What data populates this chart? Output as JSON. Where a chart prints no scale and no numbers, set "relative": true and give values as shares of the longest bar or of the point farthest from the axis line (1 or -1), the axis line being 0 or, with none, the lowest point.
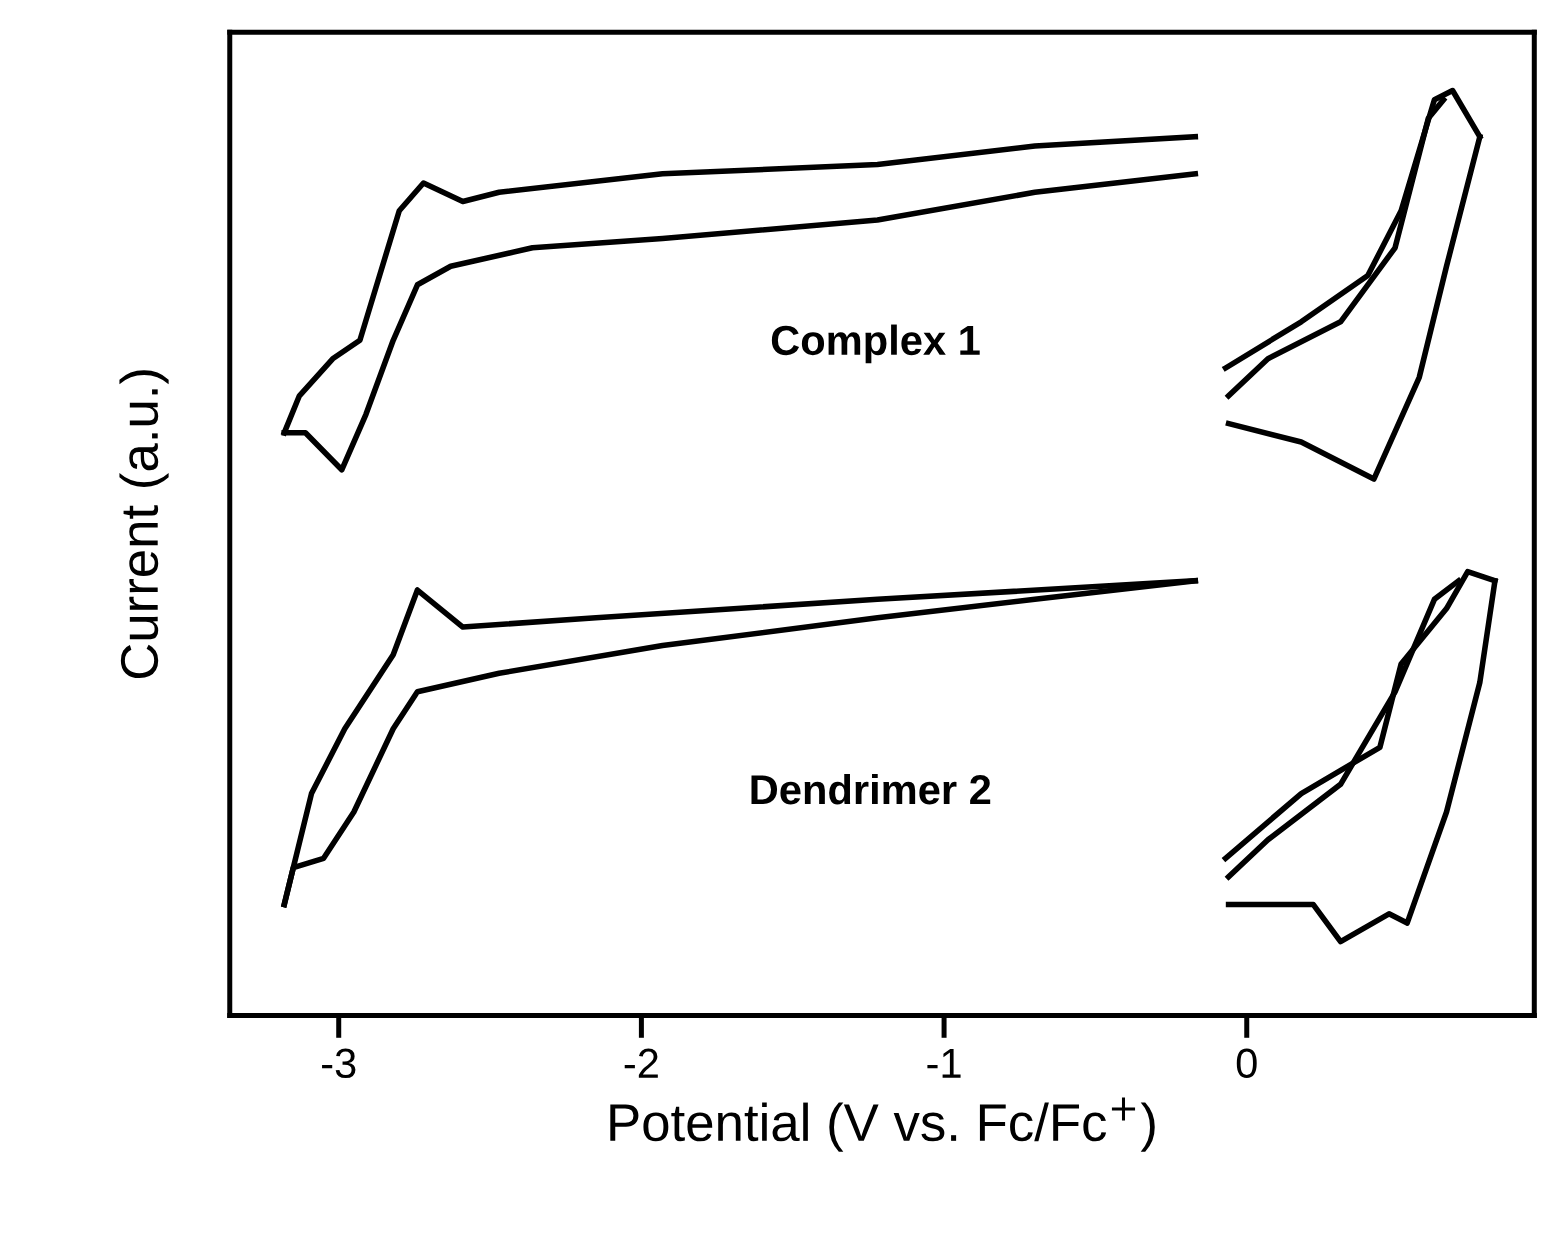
{
  "chart_data": {
    "type": "line",
    "relative": true,
    "xlabel": "Potential (V vs. Fc/Fc$^{+}$)",
    "ylabel": "Current (a.u.)",
    "xlim": [
      -3.36,
      0.95
    ],
    "xticks": [
      -3,
      -2,
      -1,
      0
    ],
    "grid": false,
    "marker": "none",
    "line_style": "solid",
    "annotations": [
      "Complex 1",
      "Dendrimer 2"
    ],
    "series": [
      {
        "color": "#000000",
        "x": [
          -0.17,
          -0.7,
          -1.22,
          -1.93,
          -2.47,
          -2.59,
          -2.72,
          -2.8,
          -2.93,
          -3.02,
          -3.13,
          -3.18
        ],
        "values": [
          0.95,
          0.94,
          0.92,
          0.91,
          0.89,
          0.88,
          0.9,
          0.87,
          0.73,
          0.71,
          0.67,
          0.63
        ]
      },
      {
        "color": "#000000",
        "x": [
          -3.18,
          -3.11,
          -2.99,
          -2.91,
          -2.82,
          -2.74,
          -2.63,
          -2.36,
          -1.93,
          -1.22,
          -0.7,
          -0.17
        ],
        "values": [
          0.63,
          0.63,
          0.59,
          0.65,
          0.73,
          0.79,
          0.81,
          0.83,
          0.84,
          0.86,
          0.89,
          0.91
        ]
      },
      {
        "color": "#000000",
        "x": [
          -0.07,
          0.18,
          0.4,
          0.51,
          0.62,
          0.68,
          0.77
        ],
        "values": [
          0.7,
          0.75,
          0.8,
          0.87,
          0.99,
          1.0,
          0.95
        ]
      },
      {
        "color": "#000000",
        "x": [
          0.77,
          0.66,
          0.57,
          0.42,
          0.18,
          -0.06
        ],
        "values": [
          0.95,
          0.81,
          0.69,
          0.58,
          0.62,
          0.64
        ]
      },
      {
        "color": "#000000",
        "x": [
          -0.06,
          0.07,
          0.31,
          0.49,
          0.6,
          0.65
        ],
        "values": [
          0.67,
          0.71,
          0.75,
          0.83,
          0.97,
          0.99
        ]
      },
      {
        "color": "#000000",
        "x": [
          -0.17,
          -1.22,
          -2.15,
          -2.59,
          -2.74,
          -2.82,
          -2.98,
          -3.09,
          -3.18
        ],
        "values": [
          0.47,
          0.45,
          0.43,
          0.42,
          0.46,
          0.39,
          0.31,
          0.24,
          0.12
        ]
      },
      {
        "color": "#000000",
        "x": [
          -3.18,
          -3.15,
          -3.05,
          -2.95,
          -2.82,
          -2.74,
          -2.47,
          -1.93,
          -1.22,
          -0.7,
          -0.17
        ],
        "values": [
          0.12,
          0.16,
          0.17,
          0.22,
          0.31,
          0.35,
          0.37,
          0.4,
          0.43,
          0.45,
          0.47
        ]
      },
      {
        "color": "#000000",
        "x": [
          -0.07,
          0.18,
          0.44,
          0.51,
          0.66,
          0.73,
          0.82
        ],
        "values": [
          0.17,
          0.24,
          0.29,
          0.38,
          0.44,
          0.48,
          0.47
        ]
      },
      {
        "color": "#000000",
        "x": [
          0.82,
          0.77,
          0.66,
          0.53,
          0.47,
          0.31,
          0.22,
          -0.06
        ],
        "values": [
          0.47,
          0.36,
          0.22,
          0.1,
          0.11,
          0.08,
          0.12,
          0.12
        ]
      },
      {
        "color": "#000000",
        "x": [
          -0.06,
          0.07,
          0.31,
          0.49,
          0.62,
          0.7
        ],
        "values": [
          0.15,
          0.19,
          0.25,
          0.35,
          0.45,
          0.47
        ]
      }
    ]
  }
}
